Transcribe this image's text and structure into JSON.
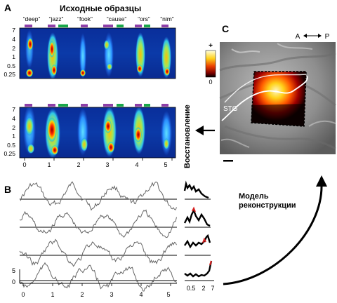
{
  "panel_a": {
    "label": "A",
    "title": "Исходные образцы",
    "words": [
      "“deep”",
      "“jazz”",
      "“fook”",
      "“cause”",
      "“ors”",
      "“nim”"
    ],
    "y_ticks": [
      "7",
      "4",
      "2",
      "1",
      "0.5",
      "0.25"
    ],
    "x_ticks": [
      "0",
      "1",
      "2",
      "3",
      "4",
      "5"
    ],
    "side_label": "Восстановление"
  },
  "panel_b": {
    "label": "B",
    "y_ticks": [
      "5",
      "0"
    ],
    "x_ticks": [
      "0",
      "1",
      "2",
      "3",
      "4",
      "5"
    ],
    "tuning_ticks": [
      "0.5",
      "2",
      "7"
    ]
  },
  "panel_c": {
    "label": "C",
    "direction": "A ↔ P",
    "direction_a": "A",
    "direction_p": "P",
    "colorbar_max": "+",
    "colorbar_min": "0",
    "region_label": "STG"
  },
  "model_label_line1": "Модель",
  "model_label_line2": "реконструкции",
  "colors": {
    "syllable_purple": "#8e3fa8",
    "syllable_green": "#1aa84a",
    "spectrogram_low": "#0b2a8f",
    "trace": "#666666",
    "tuning_peak": "#d62020"
  }
}
